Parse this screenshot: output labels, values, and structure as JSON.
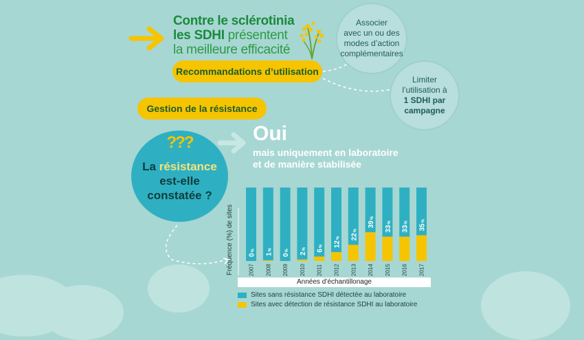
{
  "header": {
    "title_line1": "Contre le sclérotinia",
    "title_line2_a": "les SDHI",
    "title_line2_b": " présentent",
    "title_line3": "la meilleure efficacité"
  },
  "recommandations": {
    "label": "Recommandations d’utilisation",
    "circle1": [
      "Associer",
      "avec un ou des",
      "modes d’action",
      "complémentaires"
    ],
    "circle2": [
      "Limiter",
      "l’utilisation à",
      "1 SDHI par",
      "campagne"
    ]
  },
  "gestion": {
    "label": "Gestion de la résistance"
  },
  "question": {
    "marks": "???",
    "line1_a": "La ",
    "line1_b": "résistance",
    "line2": "est-elle",
    "line3": "constatée ?"
  },
  "answer": {
    "oui": "Oui",
    "sub1": "mais uniquement en laboratoire",
    "sub2": "et de manière stabilisée"
  },
  "colors": {
    "background": "#a7d7d3",
    "bar_total": "#2fb0c2",
    "bar_resistance": "#f6c400",
    "title_green": "#1b8a3b"
  },
  "chart_data": {
    "type": "bar",
    "categories": [
      "2007",
      "2008",
      "2009",
      "2010",
      "2011",
      "2012",
      "2013",
      "2014",
      "2015",
      "2016",
      "2017"
    ],
    "series": [
      {
        "name": "Sites sans résistance SDHI détectée au laboratoire",
        "values": [
          100,
          99,
          100,
          98,
          94,
          88,
          78,
          61,
          67,
          67,
          65
        ]
      },
      {
        "name": "Sites avec détection de résistance SDHI au laboratoire",
        "values": [
          0,
          1,
          0,
          2,
          6,
          12,
          22,
          39,
          33,
          33,
          35
        ]
      }
    ],
    "labels": [
      "0",
      "1",
      "0",
      "2",
      "6",
      "12",
      "22",
      "39",
      "33",
      "33",
      "35"
    ],
    "label_unit": "%",
    "stacked": true,
    "xlabel": "Années d’échantillonage",
    "ylabel": "Fréquence (%) de sites",
    "ylim": [
      0,
      100
    ],
    "legend_position": "bottom"
  }
}
